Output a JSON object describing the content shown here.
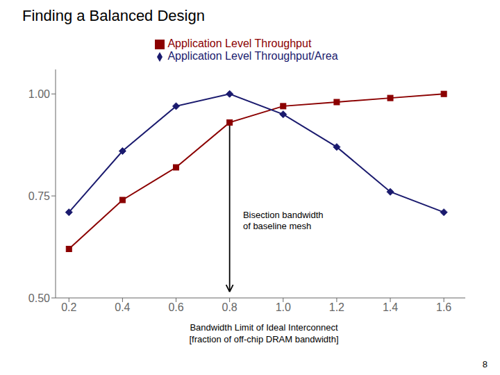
{
  "chart_data": {
    "type": "line",
    "title": "Finding a Balanced Design",
    "xlabel": "Bandwidth Limit of Ideal Interconnect\n[fraction of off-chip DRAM bandwidth]",
    "x": [
      0.2,
      0.4,
      0.6,
      0.8,
      1.0,
      1.2,
      1.4,
      1.6
    ],
    "series": [
      {
        "name": "Application Level Throughput",
        "color": "#8B0000",
        "marker": "square",
        "values": [
          0.62,
          0.74,
          0.82,
          0.93,
          0.97,
          0.98,
          0.99,
          1.0
        ]
      },
      {
        "name": "Application Level Throughput/Area",
        "color": "#1a1a6e",
        "marker": "diamond",
        "values": [
          0.71,
          0.86,
          0.97,
          1.0,
          0.95,
          0.87,
          0.76,
          0.71
        ]
      }
    ],
    "xlim": [
      0.15,
      1.68
    ],
    "ylim": [
      0.5,
      1.06
    ],
    "xticks": [
      0.2,
      0.4,
      0.6,
      0.8,
      {
        "value": 1.0,
        "label": "1.0"
      },
      1.2,
      1.4,
      1.6
    ],
    "yticks": [
      {
        "value": 0.5,
        "label": "0.50"
      },
      0.75,
      {
        "value": 1.0,
        "label": "1.00"
      }
    ],
    "grid": false,
    "legend": "top",
    "annotations": [
      {
        "text": "Bisection bandwidth\nof baseline mesh",
        "x": 0.85,
        "y": 0.695,
        "arrow": {
          "x": 0.8,
          "from": 0.93,
          "to": 0.515
        }
      },
      {
        "text": "8"
      }
    ]
  }
}
